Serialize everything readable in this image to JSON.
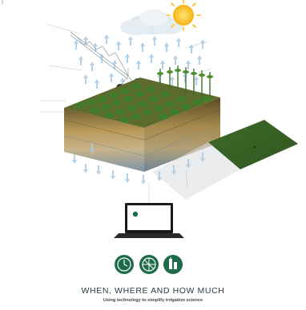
{
  "labels": {
    "top_left": "",
    "mid_left": "",
    "root_zone": "",
    "effective_root": "",
    "available_water": "",
    "sensors_left": "",
    "top_right": "",
    "right_2": "",
    "deep_percolation": "",
    "laptop_left": "",
    "laptop_right": "",
    "icons_right": ""
  },
  "laptop_logo": "",
  "headline": "WHEN, WHERE AND HOW MUCH",
  "tagline": "Using technology to simplify irrigation science",
  "colors": {
    "brand_green": "#1d6b4a",
    "soil_top": "#7c6a3a",
    "soil_mid": "#c9a870",
    "water_blue": "#3b7fb6",
    "crop_green": "#3f7f2a",
    "sun": "#f7c21b"
  },
  "icons": [
    "clock-icon",
    "pivot-icon",
    "sensor-icon"
  ]
}
